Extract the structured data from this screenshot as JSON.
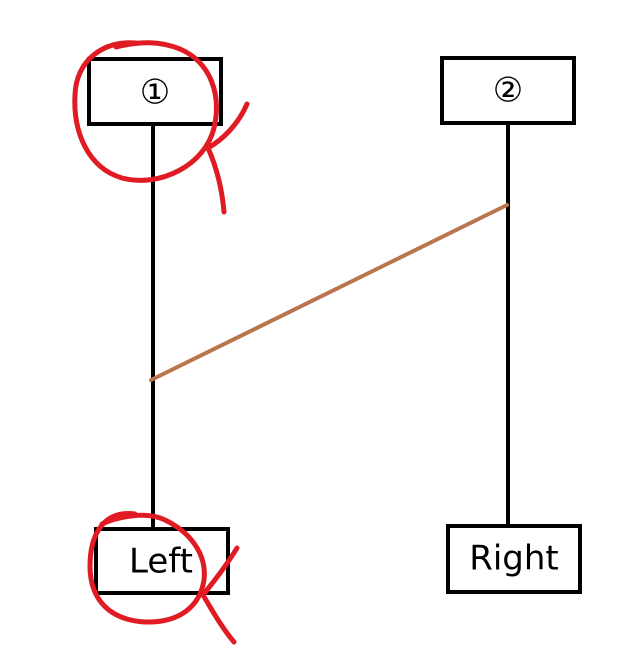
{
  "diagram": {
    "top_left_label": "①",
    "top_right_label": "②",
    "bottom_left_label": "Left",
    "bottom_right_label": "Right"
  },
  "colors": {
    "line": "#000000",
    "rung": "#b8754e",
    "annotation": "#e01b24"
  }
}
